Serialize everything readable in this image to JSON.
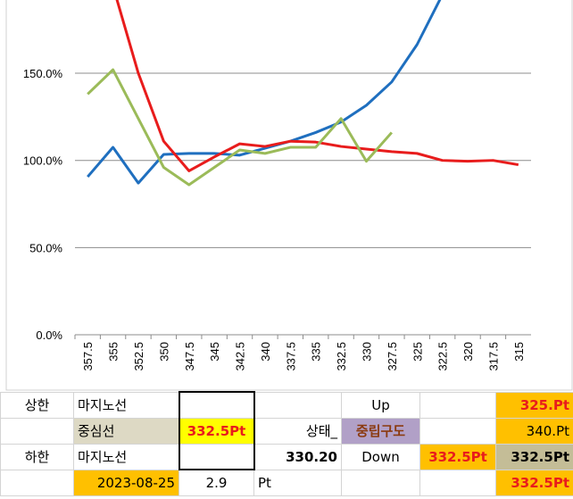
{
  "chart_data": {
    "type": "line",
    "categories": [
      "357.5",
      "355",
      "352.5",
      "350",
      "347.5",
      "345",
      "342.5",
      "340",
      "337.5",
      "335",
      "332.5",
      "330",
      "327.5",
      "325",
      "322.5",
      "320",
      "317.5",
      "315"
    ],
    "series": [
      {
        "color": "#1f6fbf",
        "values": [
          90.6,
          107.5,
          87,
          103.4,
          104,
          104,
          103,
          107,
          111,
          116,
          122,
          131.6,
          145,
          166.4,
          195,
          null,
          null,
          null
        ]
      },
      {
        "color": "#e81c1c",
        "values": [
          null,
          200,
          150,
          111,
          94,
          102,
          109.5,
          108,
          111,
          110.5,
          108,
          106.5,
          105,
          104,
          100,
          99.5,
          100,
          97.5
        ]
      },
      {
        "color": "#9bbb59",
        "values": [
          138,
          152,
          124,
          96,
          86,
          96,
          106,
          104,
          107.5,
          107.5,
          124,
          99.5,
          116,
          null,
          null,
          null,
          null,
          null
        ]
      }
    ],
    "ylim": [
      0,
      192
    ],
    "yticks": [
      {
        "value": 0,
        "label": "0.0%"
      },
      {
        "value": 50,
        "label": "50.0%"
      },
      {
        "value": 100,
        "label": "100.0%"
      },
      {
        "value": 150,
        "label": "150.0%"
      }
    ],
    "grid": true
  },
  "table": {
    "rows": [
      [
        "상한",
        "마지노선",
        null,
        null,
        "Up",
        null,
        "325.Pt"
      ],
      [
        null,
        "중심선",
        "332.5Pt",
        "상태_",
        "중립구도",
        null,
        "340.Pt"
      ],
      [
        "하한",
        "마지노선",
        null,
        "330.20",
        "Down",
        "332.5Pt",
        "332.5Pt"
      ],
      [
        null,
        "2023-08-25",
        "2.9",
        "Pt",
        null,
        null,
        "332.5Pt"
      ]
    ]
  }
}
